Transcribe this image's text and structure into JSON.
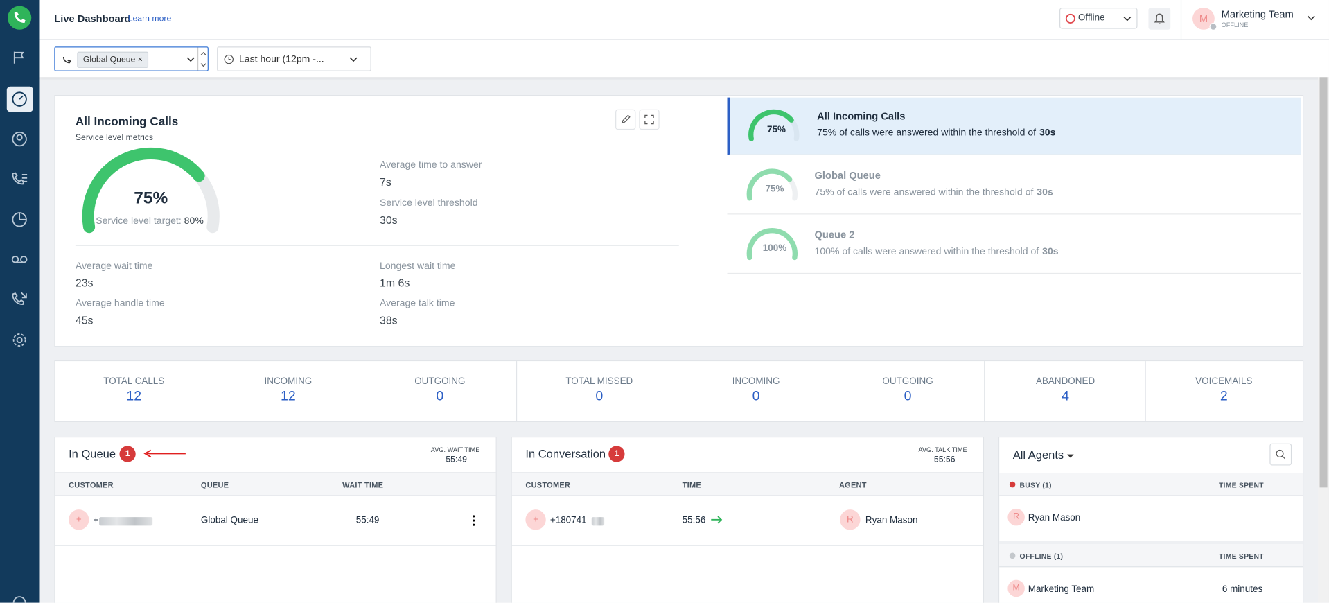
{
  "header": {
    "title": "Live Dashboard",
    "learn_more": "Learn more",
    "status": "Offline",
    "user": {
      "initial": "M",
      "name": "Marketing Team",
      "status": "OFFLINE"
    }
  },
  "filters": {
    "queue_tag": "Global Queue",
    "tag_remove": "×",
    "time_range": "Last hour (12pm -..."
  },
  "service_panel": {
    "title": "All Incoming Calls",
    "subtitle": "Service level metrics",
    "gauge": {
      "value": 75,
      "label": "75%"
    },
    "target_label": "Service level target:",
    "target_value": "80%",
    "metrics": [
      {
        "label": "Average time to answer",
        "value": "7s"
      },
      {
        "label": "Service level threshold",
        "value": "30s"
      },
      {
        "label": "Average wait time",
        "value": "23s"
      },
      {
        "label": "Average handle time",
        "value": "45s"
      },
      {
        "label": "Longest wait time",
        "value": "1m 6s"
      },
      {
        "label": "Average talk time",
        "value": "38s"
      }
    ]
  },
  "queues": [
    {
      "name": "All Incoming Calls",
      "gauge": {
        "value": 75,
        "label": "75%"
      },
      "description": "75% of calls were answered within the threshold of",
      "threshold": "30s"
    },
    {
      "name": "Global Queue",
      "gauge": {
        "value": 75,
        "label": "75%"
      },
      "description": "75% of calls were answered within the threshold of",
      "threshold": "30s"
    },
    {
      "name": "Queue 2",
      "gauge": {
        "value": 100,
        "label": "100%"
      },
      "description": "100% of calls were answered within the threshold of",
      "threshold": "30s"
    }
  ],
  "stats": [
    {
      "label": "TOTAL CALLS",
      "value": 12
    },
    {
      "label": "INCOMING",
      "value": 12
    },
    {
      "label": "OUTGOING",
      "value": 0
    },
    {
      "label": "TOTAL MISSED",
      "value": 0
    },
    {
      "label": "INCOMING",
      "value": 0
    },
    {
      "label": "OUTGOING",
      "value": 0
    },
    {
      "label": "ABANDONED",
      "value": 4
    },
    {
      "label": "VOICEMAILS",
      "value": 2
    }
  ],
  "in_queue": {
    "title": "In Queue",
    "count": 1,
    "avg_label": "AVG. WAIT TIME",
    "avg_value": "55:49",
    "columns": [
      "CUSTOMER",
      "QUEUE",
      "WAIT TIME"
    ],
    "rows": [
      {
        "avatar": "+",
        "customer": "+",
        "queue": "Global Queue",
        "wait": "55:49"
      }
    ]
  },
  "in_conversation": {
    "title": "In Conversation",
    "count": 1,
    "avg_label": "AVG. TALK TIME",
    "avg_value": "55:56",
    "columns": [
      "CUSTOMER",
      "TIME",
      "AGENT"
    ],
    "rows": [
      {
        "avatar": "+",
        "customer": "+180741",
        "time": "55:56",
        "agent_initial": "R",
        "agent": "Ryan Mason"
      }
    ]
  },
  "agents": {
    "title": "All Agents",
    "groups": [
      {
        "status": "BUSY (1)",
        "column": "TIME SPENT",
        "agents": [
          {
            "initial": "R",
            "name": "Ryan Mason"
          }
        ]
      },
      {
        "status": "OFFLINE (1)",
        "column": "TIME SPENT",
        "agents": [
          {
            "initial": "M",
            "name": "Marketing Team",
            "time": "6 minutes"
          }
        ]
      }
    ]
  }
}
